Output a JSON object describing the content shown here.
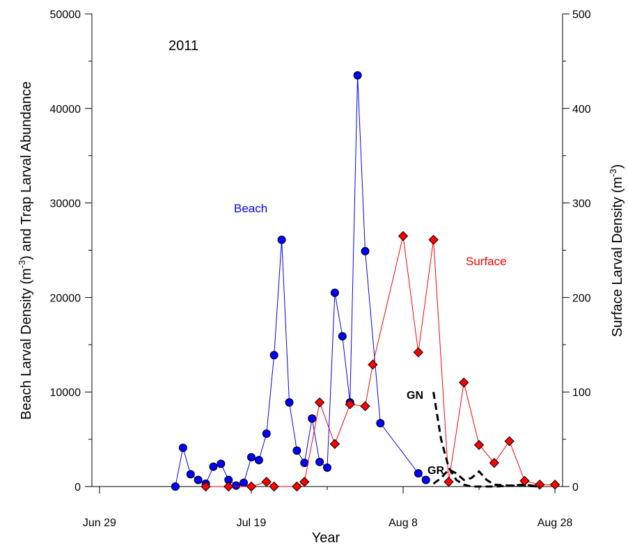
{
  "chart_data": {
    "type": "line",
    "annotation_year": "2011",
    "xlabel": "Year",
    "ylabel_left": "Beach Larval Density (m",
    "ylabel_left_sup": "-3",
    "ylabel_left_tail": ") and Trap Larval Abundance",
    "ylabel_right": "Surface Larval Density (m",
    "ylabel_right_sup": "-3",
    "ylabel_right_tail": ")",
    "x_ticks": [
      {
        "label": "Jun 29",
        "day": 0
      },
      {
        "label": "Jul 19",
        "day": 20
      },
      {
        "label": "Aug 8",
        "day": 40
      },
      {
        "label": "Aug 28",
        "day": 60
      }
    ],
    "xlim": [
      -1,
      61
    ],
    "ylim_left": [
      0,
      50000
    ],
    "ylim_right": [
      0,
      500
    ],
    "y_ticks_left": [
      "0",
      "10000",
      "20000",
      "30000",
      "40000",
      "50000"
    ],
    "y_ticks_right": [
      "0",
      "100",
      "200",
      "300",
      "400",
      "500"
    ],
    "series": [
      {
        "name": "Beach",
        "axis": "left",
        "color": "#0000ff",
        "marker": "circle",
        "points": [
          [
            10,
            0
          ],
          [
            11,
            4100
          ],
          [
            12,
            1300
          ],
          [
            13,
            700
          ],
          [
            14,
            300
          ],
          [
            15,
            2100
          ],
          [
            16,
            2400
          ],
          [
            17,
            700
          ],
          [
            18,
            100
          ],
          [
            19,
            400
          ],
          [
            20,
            3100
          ],
          [
            21,
            2800
          ],
          [
            22,
            5600
          ],
          [
            23,
            13900
          ],
          [
            24,
            26100
          ],
          [
            25,
            8900
          ],
          [
            26,
            3800
          ],
          [
            27,
            2500
          ],
          [
            28,
            7200
          ],
          [
            29,
            2600
          ],
          [
            30,
            2000
          ],
          [
            31,
            20500
          ],
          [
            32,
            15900
          ],
          [
            33,
            8900
          ],
          [
            34,
            43500
          ],
          [
            35,
            24900
          ],
          [
            37,
            6700
          ],
          [
            42,
            1400
          ],
          [
            43,
            700
          ]
        ]
      },
      {
        "name": "Surface",
        "axis": "right",
        "color": "#ff0000",
        "marker": "diamond",
        "points": [
          [
            14,
            0
          ],
          [
            17,
            0
          ],
          [
            20,
            0
          ],
          [
            22,
            5
          ],
          [
            23,
            0
          ],
          [
            26,
            0
          ],
          [
            27,
            5
          ],
          [
            29,
            89
          ],
          [
            31,
            45
          ],
          [
            33,
            87
          ],
          [
            35,
            85
          ],
          [
            36,
            129
          ],
          [
            40,
            265
          ],
          [
            42,
            142
          ],
          [
            44,
            261
          ],
          [
            46,
            5
          ],
          [
            48,
            110
          ],
          [
            50,
            44
          ],
          [
            52,
            25
          ],
          [
            54,
            48
          ],
          [
            56,
            6
          ],
          [
            58,
            2
          ],
          [
            60,
            2
          ]
        ]
      },
      {
        "name": "GN",
        "axis": "left",
        "color": "#000000",
        "dashed": true,
        "points": [
          [
            44,
            10000
          ],
          [
            45,
            5000
          ],
          [
            46,
            2000
          ],
          [
            47,
            700
          ],
          [
            48,
            200
          ],
          [
            49,
            0
          ],
          [
            52,
            0
          ],
          [
            55,
            100
          ],
          [
            58,
            0
          ]
        ]
      },
      {
        "name": "GR",
        "axis": "left",
        "color": "#000000",
        "dashed": true,
        "points": [
          [
            44,
            300
          ],
          [
            45,
            900
          ],
          [
            46,
            1800
          ],
          [
            47,
            1400
          ],
          [
            48,
            700
          ],
          [
            49,
            900
          ],
          [
            50,
            1600
          ],
          [
            51,
            700
          ],
          [
            52,
            200
          ],
          [
            54,
            100
          ],
          [
            56,
            200
          ],
          [
            58,
            0
          ]
        ]
      }
    ],
    "series_labels": {
      "beach": "Beach",
      "surface": "Surface",
      "gn": "GN",
      "gr": "GR"
    }
  }
}
